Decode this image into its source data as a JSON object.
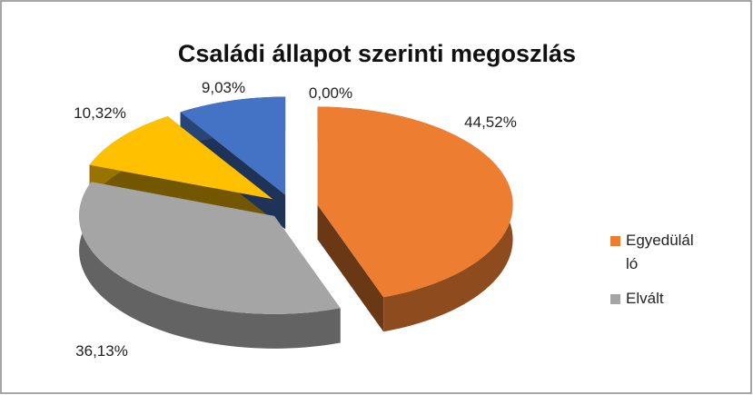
{
  "chart_data": {
    "type": "pie3d",
    "title": "Családi állapot szerinti megoszlás",
    "categories": [
      "Egyedülálló",
      "Elvált",
      null,
      null,
      null
    ],
    "values": [
      44.52,
      36.13,
      10.32,
      9.03,
      0.0
    ],
    "value_labels": [
      "44,52%",
      "36,13%",
      "10,32%",
      "9,03%",
      "0,00%"
    ],
    "colors": [
      "#ed7d31",
      "#a5a5a5",
      "#ffc000",
      "#4472c4",
      "#5b9bd5"
    ],
    "legend": "right"
  }
}
